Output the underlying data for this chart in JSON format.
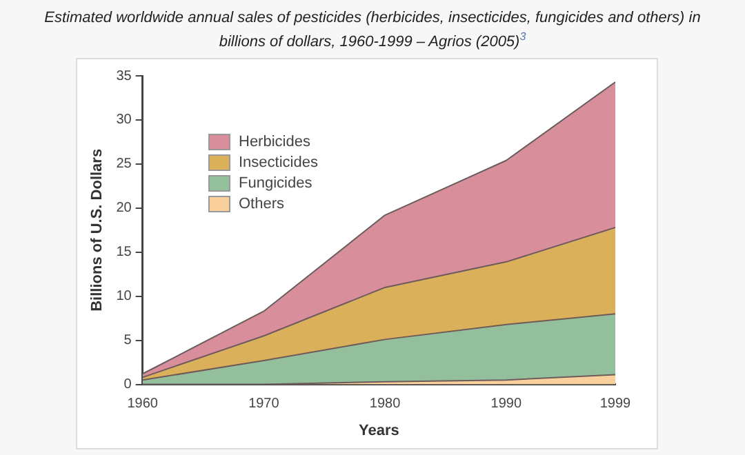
{
  "chart_data": {
    "type": "area",
    "title": "Estimated worldwide annual sales of pesticides (herbicides, insecticides, fungicides and others) in billions of dollars, 1960-1999 – Agrios (2005)$^{3}$",
    "xlabel": "Years",
    "ylabel": "Billions of U.S. Dollars",
    "x": [
      1960,
      1970,
      1980,
      1990,
      1999
    ],
    "stacked": true,
    "series": [
      {
        "name": "Others",
        "color": "#f9cf9b",
        "values": [
          0,
          0,
          0.3,
          0.5,
          1.1
        ]
      },
      {
        "name": "Fungicides",
        "color": "#93bf9c",
        "values": [
          0.5,
          2.7,
          4.8,
          6.3,
          6.9
        ]
      },
      {
        "name": "Insecticides",
        "color": "#dbb05a",
        "values": [
          0.3,
          2.8,
          5.9,
          7.1,
          9.8
        ]
      },
      {
        "name": "Herbicides",
        "color": "#d98f9b",
        "values": [
          0.4,
          2.8,
          8.2,
          11.5,
          16.5
        ]
      }
    ],
    "xlim": [
      1960,
      1999
    ],
    "xticks": [
      1960,
      1970,
      1980,
      1990,
      1999
    ],
    "ylim": [
      0,
      35
    ],
    "yticks": [
      0,
      5,
      10,
      15,
      20,
      25,
      30,
      35
    ],
    "grid": false,
    "legend": "top left"
  }
}
